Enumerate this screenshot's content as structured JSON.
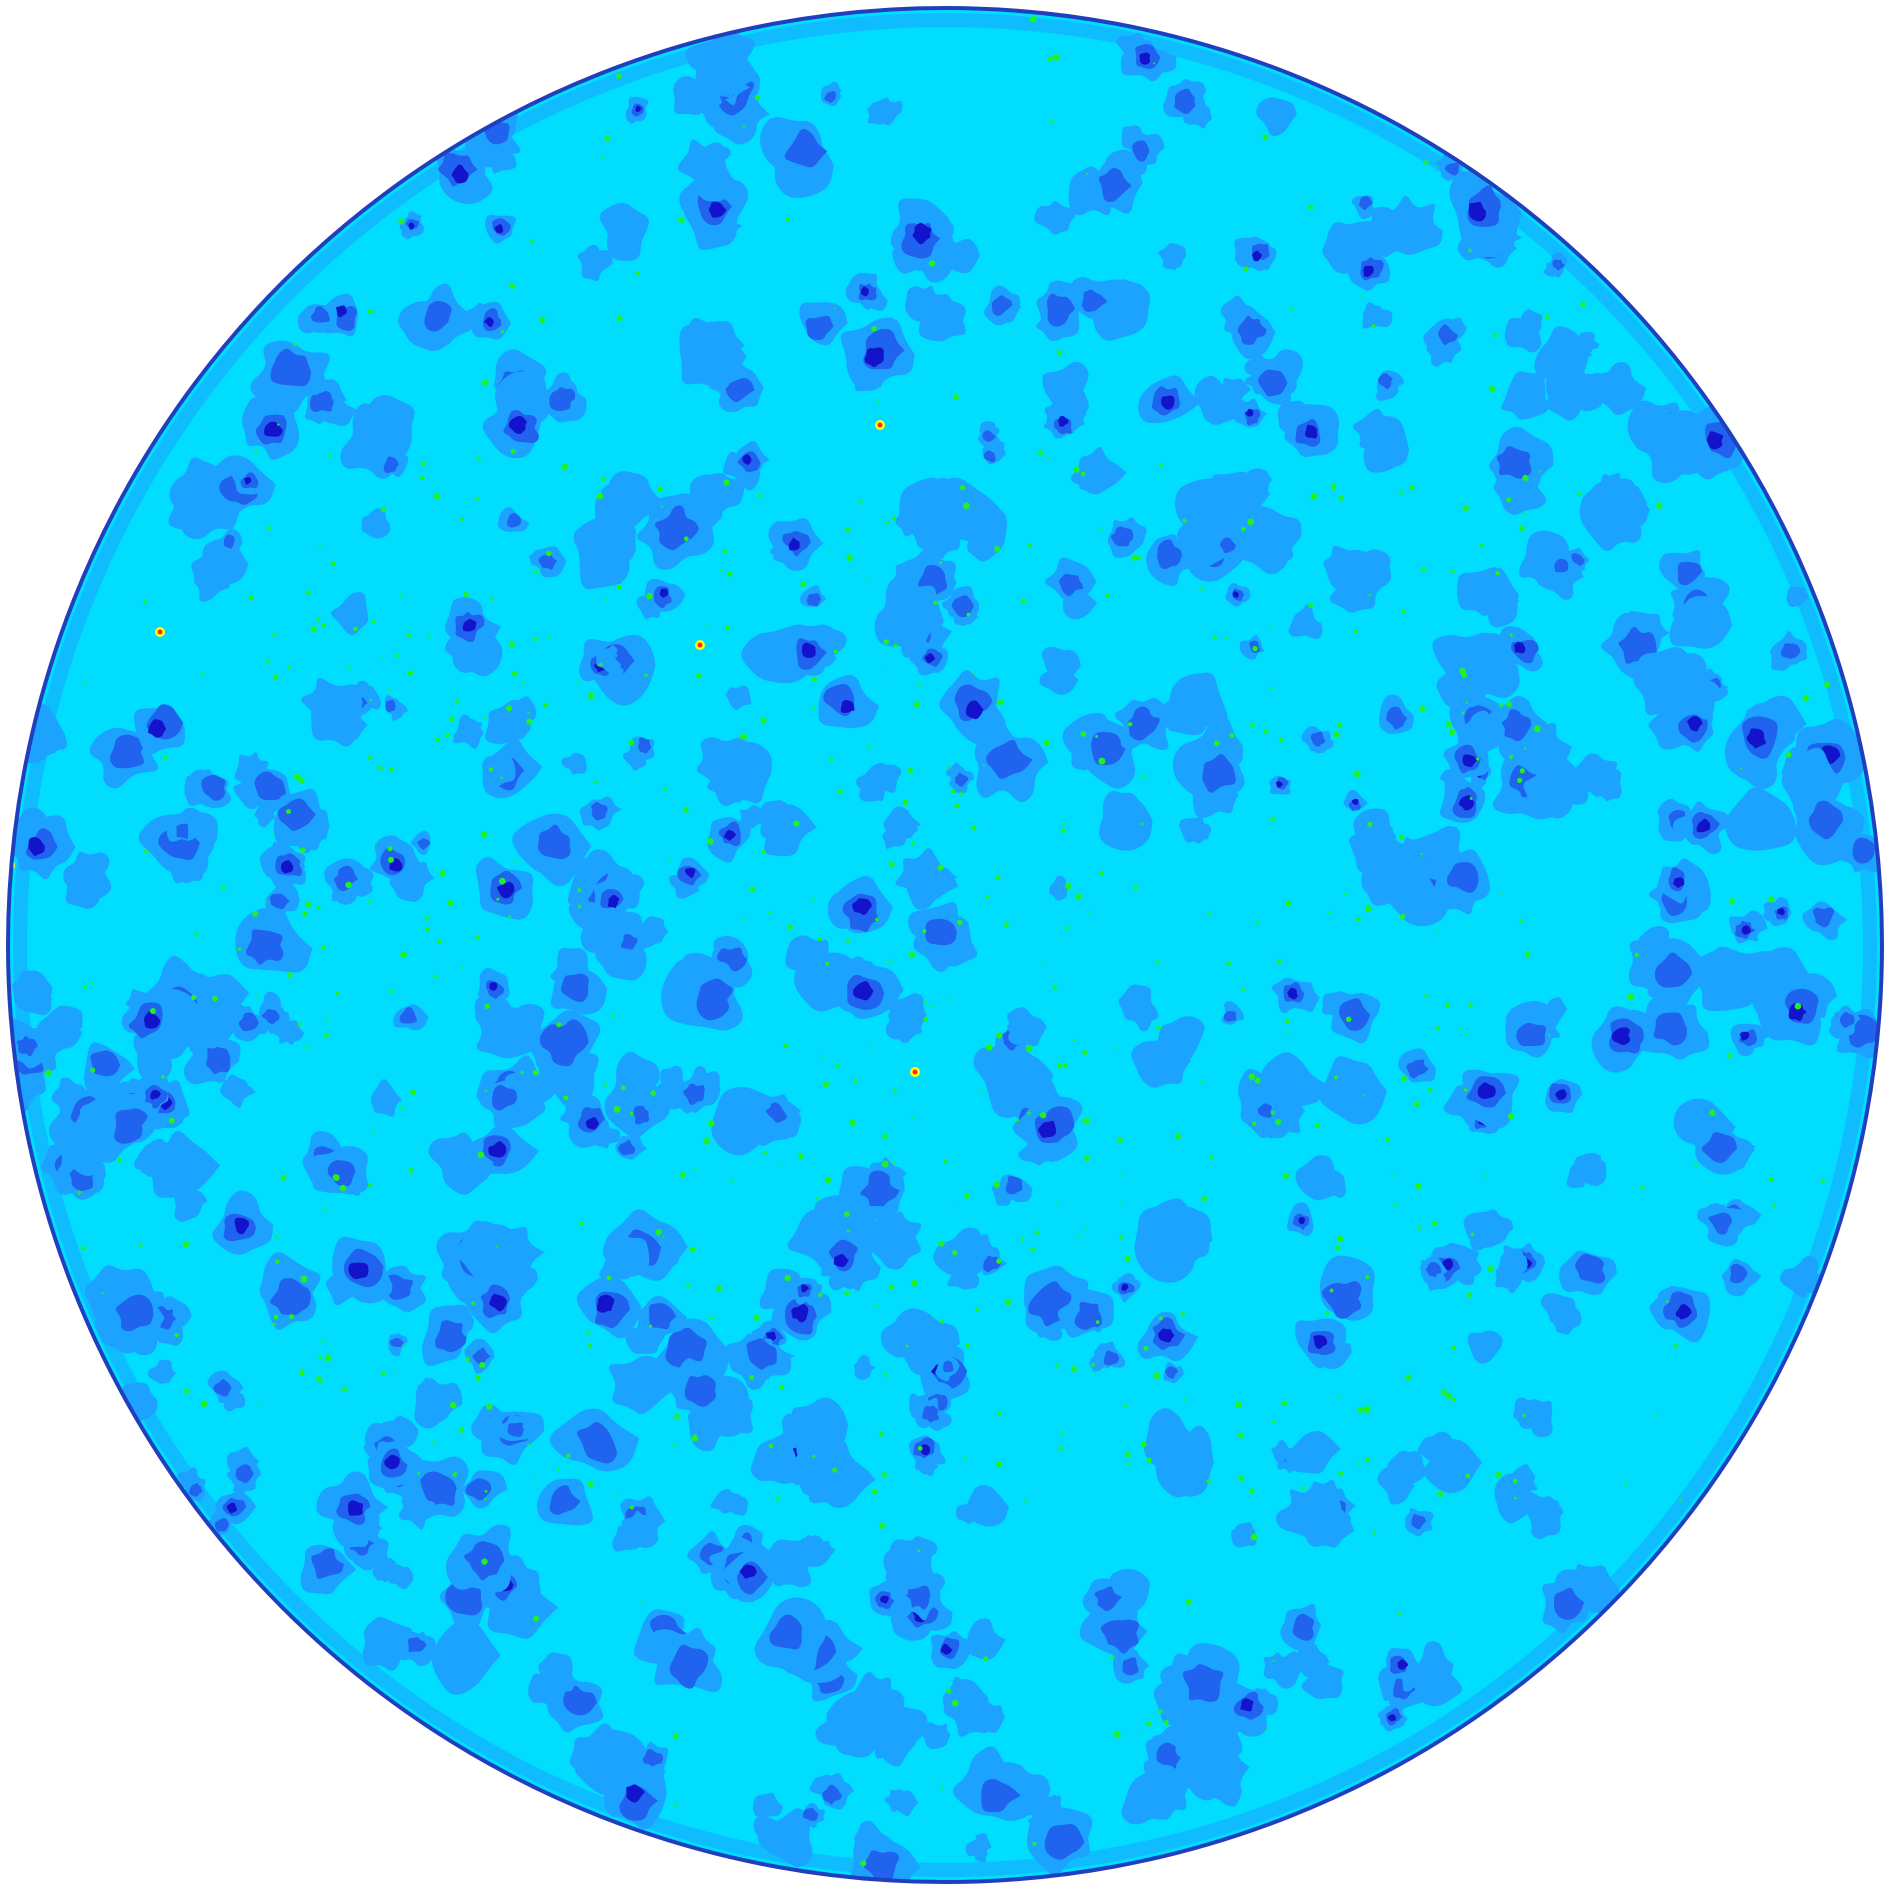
{
  "image": {
    "kind": "circular-contour-map",
    "description_shown": "",
    "palette": {
      "background": "#ffffff",
      "rim": "#1f3fbf",
      "base": "#00ddff",
      "level_1": "#1ca3ff",
      "level_2": "#1f63ee",
      "level_3": "#1313cc",
      "green_speck": "#22f020",
      "hot_spot": "#ff2a10",
      "yellow_speck": "#ffff10"
    },
    "icons": [
      "circular-field"
    ]
  }
}
